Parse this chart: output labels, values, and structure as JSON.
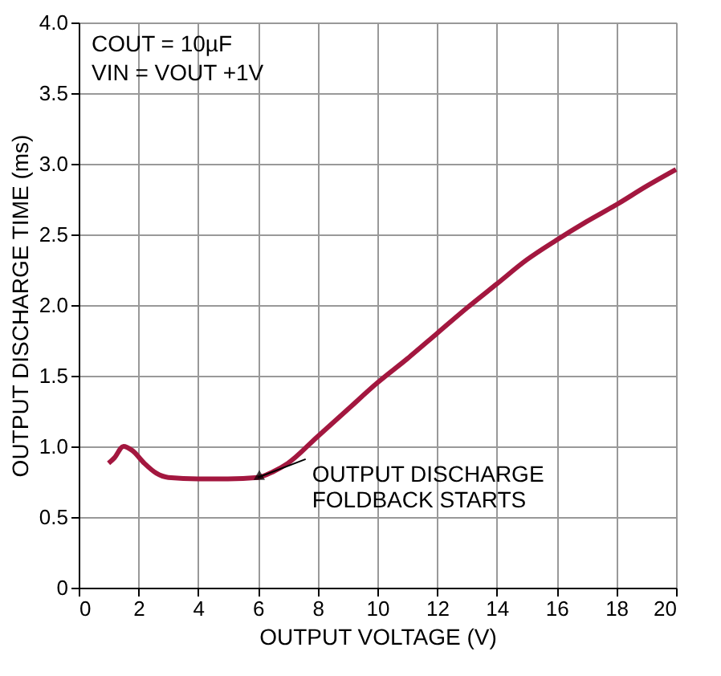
{
  "chart_data": {
    "type": "line",
    "xlabel": "OUTPUT VOLTAGE (V)",
    "ylabel": "OUTPUT DISCHARGE TIME (ms)",
    "x": [
      1,
      1.2,
      1.5,
      1.8,
      2.2,
      2.6,
      3,
      4,
      5,
      6,
      6.5,
      7,
      8,
      9,
      10,
      11,
      12,
      13,
      14,
      15,
      16,
      17,
      18,
      19,
      20
    ],
    "series": [
      {
        "color": "#a3173f",
        "values": [
          0.88,
          0.92,
          1.0,
          0.97,
          0.88,
          0.81,
          0.78,
          0.77,
          0.77,
          0.78,
          0.82,
          0.88,
          1.07,
          1.26,
          1.45,
          1.62,
          1.8,
          1.98,
          2.15,
          2.32,
          2.46,
          2.59,
          2.71,
          2.84,
          2.96
        ]
      }
    ],
    "xlim": [
      0,
      20
    ],
    "xticks": [
      0,
      2,
      4,
      6,
      8,
      10,
      12,
      14,
      16,
      18,
      20
    ],
    "ylim": [
      0,
      4
    ],
    "yticks": [
      {
        "value": 0,
        "label": "0"
      },
      {
        "value": 0.5,
        "label": "0.5"
      },
      {
        "value": 1,
        "label": "1.0"
      },
      {
        "value": 1.5,
        "label": "1.5"
      },
      {
        "value": 2,
        "label": "2.0"
      },
      {
        "value": 2.5,
        "label": "2.5"
      },
      {
        "value": 3,
        "label": "3.0"
      },
      {
        "value": 3.5,
        "label": "3.5"
      },
      {
        "value": 4,
        "label": "4.0"
      }
    ],
    "grid": true,
    "marker": "none",
    "line_style": "solid",
    "annotations": [
      "COUT = 10µF",
      "VIN = VOUT +1V",
      {
        "text": "OUTPUT DISCHARGE\nFOLDBACK STARTS",
        "x": 6,
        "y": 0.78
      }
    ]
  }
}
